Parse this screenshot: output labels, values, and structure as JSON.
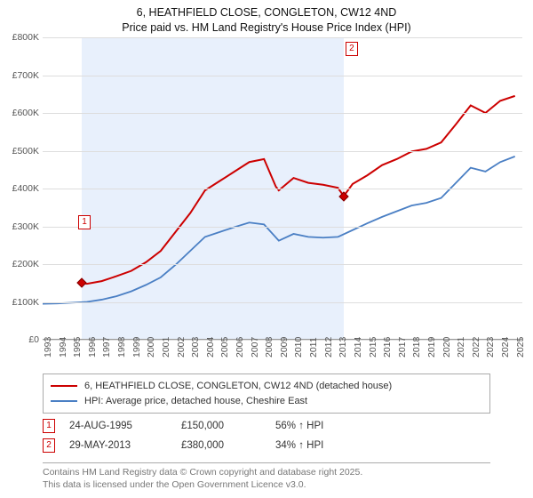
{
  "title": {
    "line1": "6, HEATHFIELD CLOSE, CONGLETON, CW12 4ND",
    "line2": "Price paid vs. HM Land Registry's House Price Index (HPI)"
  },
  "chart": {
    "type": "line",
    "background_color": "#ffffff",
    "shade_color": "#e8f0fc",
    "grid_color": "#dddddd",
    "axis_color": "#999999",
    "x_years": [
      1993,
      1994,
      1995,
      1996,
      1997,
      1998,
      1999,
      2000,
      2001,
      2002,
      2003,
      2004,
      2005,
      2006,
      2007,
      2008,
      2009,
      2010,
      2011,
      2012,
      2013,
      2014,
      2015,
      2016,
      2017,
      2018,
      2019,
      2020,
      2021,
      2022,
      2023,
      2024,
      2025
    ],
    "xlim": [
      1993,
      2025.5
    ],
    "ylim": [
      0,
      800
    ],
    "ytick_step": 100,
    "ytick_labels": [
      "£0",
      "£100K",
      "£200K",
      "£300K",
      "£400K",
      "£500K",
      "£600K",
      "£700K",
      "£800K"
    ],
    "label_fontsize": 10.5,
    "title_fontsize": 12.5,
    "shade_range": [
      1995.65,
      2013.4
    ],
    "series": [
      {
        "name": "6, HEATHFIELD CLOSE, CONGLETON, CW12 4ND (detached house)",
        "color": "#cc0000",
        "line_width": 2,
        "data": [
          [
            1995.65,
            150
          ],
          [
            1996,
            148
          ],
          [
            1997,
            155
          ],
          [
            1998,
            168
          ],
          [
            1999,
            182
          ],
          [
            2000,
            205
          ],
          [
            2001,
            235
          ],
          [
            2002,
            285
          ],
          [
            2003,
            335
          ],
          [
            2004,
            395
          ],
          [
            2005,
            420
          ],
          [
            2006,
            445
          ],
          [
            2007,
            470
          ],
          [
            2008,
            478
          ],
          [
            2008.8,
            405
          ],
          [
            2009,
            395
          ],
          [
            2010,
            428
          ],
          [
            2011,
            415
          ],
          [
            2012,
            410
          ],
          [
            2013,
            402
          ],
          [
            2013.4,
            380
          ],
          [
            2014,
            412
          ],
          [
            2015,
            435
          ],
          [
            2016,
            462
          ],
          [
            2017,
            478
          ],
          [
            2018,
            498
          ],
          [
            2019,
            505
          ],
          [
            2020,
            522
          ],
          [
            2021,
            570
          ],
          [
            2022,
            620
          ],
          [
            2023,
            600
          ],
          [
            2024,
            632
          ],
          [
            2025,
            645
          ]
        ]
      },
      {
        "name": "HPI: Average price, detached house, Cheshire East",
        "color": "#4a7fc4",
        "line_width": 1.8,
        "data": [
          [
            1993,
            95
          ],
          [
            1994,
            96
          ],
          [
            1995,
            98
          ],
          [
            1996,
            100
          ],
          [
            1997,
            106
          ],
          [
            1998,
            115
          ],
          [
            1999,
            128
          ],
          [
            2000,
            145
          ],
          [
            2001,
            165
          ],
          [
            2002,
            198
          ],
          [
            2003,
            235
          ],
          [
            2004,
            272
          ],
          [
            2005,
            285
          ],
          [
            2006,
            298
          ],
          [
            2007,
            310
          ],
          [
            2008,
            305
          ],
          [
            2009,
            262
          ],
          [
            2010,
            280
          ],
          [
            2011,
            272
          ],
          [
            2012,
            270
          ],
          [
            2013,
            272
          ],
          [
            2014,
            290
          ],
          [
            2015,
            308
          ],
          [
            2016,
            325
          ],
          [
            2017,
            340
          ],
          [
            2018,
            355
          ],
          [
            2019,
            362
          ],
          [
            2020,
            375
          ],
          [
            2021,
            415
          ],
          [
            2022,
            455
          ],
          [
            2023,
            445
          ],
          [
            2024,
            470
          ],
          [
            2025,
            485
          ]
        ]
      }
    ],
    "markers": [
      {
        "x": 1995.65,
        "y": 150,
        "flag": "1",
        "flag_dx": -4,
        "flag_dy": -76
      },
      {
        "x": 2013.4,
        "y": 380,
        "flag": "2",
        "flag_dx": 2,
        "flag_dy": -174
      }
    ]
  },
  "legend": {
    "items": [
      {
        "color": "#cc0000",
        "label": "6, HEATHFIELD CLOSE, CONGLETON, CW12 4ND (detached house)"
      },
      {
        "color": "#4a7fc4",
        "label": "HPI: Average price, detached house, Cheshire East"
      }
    ]
  },
  "sales": [
    {
      "flag": "1",
      "date": "24-AUG-1995",
      "price": "£150,000",
      "delta": "56% ↑ HPI"
    },
    {
      "flag": "2",
      "date": "29-MAY-2013",
      "price": "£380,000",
      "delta": "34% ↑ HPI"
    }
  ],
  "footer": {
    "line1": "Contains HM Land Registry data © Crown copyright and database right 2025.",
    "line2": "This data is licensed under the Open Government Licence v3.0."
  }
}
